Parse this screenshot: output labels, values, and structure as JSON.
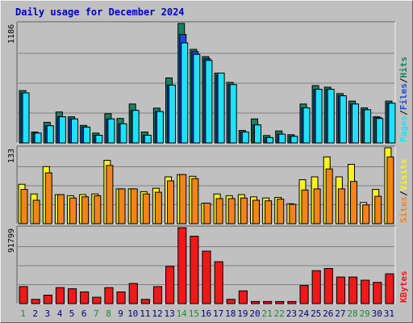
{
  "title": "Daily usage for December 2024",
  "colors": {
    "hits": "#158262",
    "files": "#1c4ad8",
    "pages": "#1ee2f8",
    "visits": "#f8f51a",
    "sites": "#f48419",
    "kbytes": "#ee1919",
    "weekend_day": "#168a3a",
    "weekday_day": "#000080"
  },
  "chart_data": [
    {
      "type": "bar",
      "panel": "hits-files-pages",
      "title": "Daily usage for December 2024",
      "ylabel_max": "1186",
      "legend": [
        "Pages",
        "Files",
        "Hits"
      ],
      "categories": [
        "1",
        "2",
        "3",
        "4",
        "5",
        "6",
        "7",
        "8",
        "9",
        "10",
        "11",
        "12",
        "13",
        "14",
        "15",
        "16",
        "17",
        "18",
        "19",
        "20",
        "21",
        "22",
        "23",
        "24",
        "25",
        "26",
        "27",
        "28",
        "29",
        "30",
        "31"
      ],
      "ylim": [
        0,
        1186
      ],
      "series": [
        {
          "name": "Hits",
          "values": [
            519,
            108,
            204,
            307,
            260,
            174,
            98,
            290,
            243,
            386,
            108,
            345,
            645,
            1186,
            929,
            857,
            693,
            601,
            124,
            238,
            74,
            119,
            82,
            386,
            569,
            553,
            490,
            415,
            348,
            260,
            415
          ]
        },
        {
          "name": "Files",
          "values": [
            497,
            98,
            171,
            260,
            238,
            157,
            76,
            238,
            190,
            323,
            76,
            312,
            574,
            1076,
            907,
            835,
            671,
            579,
            108,
            179,
            53,
            87,
            66,
            348,
            532,
            532,
            468,
            386,
            329,
            251,
            394
          ]
        },
        {
          "name": "Pages",
          "values": [
            497,
            98,
            171,
            260,
            238,
            157,
            76,
            238,
            190,
            323,
            76,
            312,
            574,
            993,
            879,
            819,
            693,
            579,
            108,
            179,
            53,
            87,
            66,
            348,
            532,
            532,
            468,
            386,
            329,
            243,
            394
          ]
        }
      ]
    },
    {
      "type": "bar",
      "panel": "visits-sites",
      "ylabel_max": "133",
      "legend": [
        "Sites",
        "Visits"
      ],
      "categories": [
        "1",
        "2",
        "3",
        "4",
        "5",
        "6",
        "7",
        "8",
        "9",
        "10",
        "11",
        "12",
        "13",
        "14",
        "15",
        "16",
        "17",
        "18",
        "19",
        "20",
        "21",
        "22",
        "23",
        "24",
        "25",
        "26",
        "27",
        "28",
        "29",
        "30",
        "31"
      ],
      "ylim": [
        0,
        133
      ],
      "series": [
        {
          "name": "Visits",
          "values": [
            69,
            52,
            100,
            51,
            49,
            51,
            52,
            111,
            61,
            61,
            56,
            62,
            82,
            86,
            83,
            36,
            52,
            49,
            51,
            47,
            45,
            46,
            35,
            77,
            82,
            117,
            82,
            104,
            37,
            60,
            133
          ]
        },
        {
          "name": "Sites",
          "values": [
            60,
            41,
            89,
            51,
            45,
            47,
            49,
            102,
            61,
            61,
            52,
            55,
            75,
            86,
            79,
            36,
            44,
            44,
            45,
            41,
            40,
            43,
            34,
            59,
            61,
            96,
            61,
            74,
            33,
            48,
            117
          ]
        }
      ]
    },
    {
      "type": "bar",
      "panel": "kbytes",
      "ylabel_max": "91799",
      "legend": [
        "KBytes"
      ],
      "categories": [
        "1",
        "2",
        "3",
        "4",
        "5",
        "6",
        "7",
        "8",
        "9",
        "10",
        "11",
        "12",
        "13",
        "14",
        "15",
        "16",
        "17",
        "18",
        "19",
        "20",
        "21",
        "22",
        "23",
        "24",
        "25",
        "26",
        "27",
        "28",
        "29",
        "30",
        "31"
      ],
      "ylim": [
        0,
        91799
      ],
      "series": [
        {
          "name": "KBytes",
          "values": [
            20580,
            5146,
            10290,
            19295,
            18010,
            14150,
            7717,
            19295,
            14150,
            24440,
            5146,
            20580,
            45020,
            91799,
            81510,
            63500,
            50650,
            5146,
            15440,
            2573,
            2573,
            2573,
            2573,
            21870,
            39880,
            42460,
            32170,
            32170,
            28300,
            25720,
            36020
          ]
        }
      ]
    }
  ]
}
